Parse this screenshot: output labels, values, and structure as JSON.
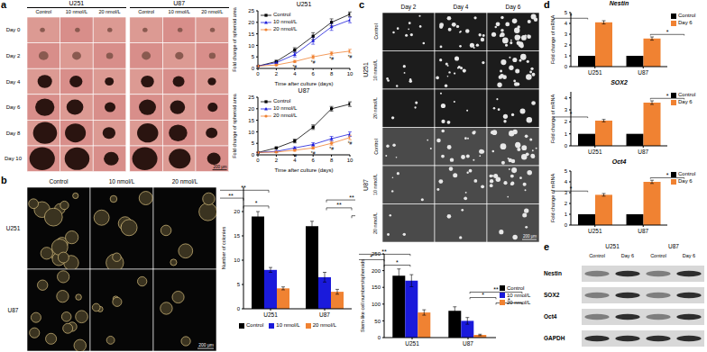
{
  "panels": {
    "a": {
      "label": "a",
      "cell_lines": [
        "U251",
        "U87"
      ],
      "conditions": [
        "Control",
        "10 nmol/L",
        "20 nmol/L"
      ],
      "days": [
        "Day 0",
        "Day 2",
        "Day 4",
        "Day 6",
        "Day 8",
        "Day 10"
      ],
      "scale_bar": "200 μm"
    },
    "b": {
      "label": "b",
      "conditions": [
        "Control",
        "10 nmol/L",
        "20 nmol/L"
      ],
      "cell_lines": [
        "U251",
        "U87"
      ],
      "scale_bar": "200 μm"
    },
    "c": {
      "label": "c",
      "days": [
        "Day 2",
        "Day 4",
        "Day 6"
      ],
      "cell_lines": [
        "U251",
        "U87"
      ],
      "conditions": [
        "Control",
        "10 nmol/L",
        "20 nmol/L"
      ],
      "scale_bar": "200 μm"
    },
    "d": {
      "label": "d"
    },
    "e": {
      "label": "e",
      "cell_lines": [
        "U251",
        "U87"
      ],
      "conditions": [
        "Control",
        "Day 6"
      ],
      "proteins": [
        "Nestin",
        "SOX2",
        "Oct4",
        "GAPDH"
      ]
    }
  },
  "chart_data": [
    {
      "type": "line",
      "title": "U251",
      "x_label": "Time after culture (days)",
      "y_label": "Fold change of spheroid area",
      "x": [
        0,
        2,
        4,
        6,
        8,
        10
      ],
      "xlim": [
        0,
        10
      ],
      "xticks": [
        0,
        2,
        4,
        6,
        8,
        10
      ],
      "ylim": [
        0,
        25
      ],
      "yticks": [
        0,
        5,
        10,
        15,
        20,
        25
      ],
      "legend": "top-left",
      "series": [
        {
          "name": "Control",
          "color": "#000000",
          "marker": "square",
          "values": [
            1,
            3,
            8,
            14,
            20,
            23.5
          ],
          "errors": [
            0.1,
            0.5,
            1,
            1.5,
            1.5,
            1
          ]
        },
        {
          "name": "10 nmol/L",
          "color": "#1a1adb",
          "marker": "triangle",
          "values": [
            1,
            2.5,
            6,
            12,
            18,
            21
          ],
          "errors": [
            0.1,
            0.4,
            1,
            1.5,
            1.5,
            1.2
          ]
        },
        {
          "name": "20 nmol/L",
          "color": "#f08232",
          "marker": "circle",
          "values": [
            1,
            1.5,
            3,
            5,
            6.5,
            7.5
          ],
          "errors": [
            0.1,
            0.3,
            0.5,
            0.8,
            0.8,
            0.8
          ]
        }
      ],
      "annotations": [
        {
          "series": "20 nmol/L",
          "x": 4,
          "label": "*#"
        },
        {
          "series": "20 nmol/L",
          "x": 6,
          "label": "*#"
        },
        {
          "series": "20 nmol/L",
          "x": 8,
          "label": "*#"
        },
        {
          "series": "20 nmol/L",
          "x": 10,
          "label": "*#"
        }
      ]
    },
    {
      "type": "line",
      "title": "U87",
      "x_label": "Time after culture (days)",
      "y_label": "Fold change of spheroid area",
      "x": [
        0,
        2,
        4,
        6,
        8,
        10
      ],
      "xlim": [
        0,
        10
      ],
      "xticks": [
        0,
        2,
        4,
        6,
        8,
        10
      ],
      "ylim": [
        0,
        25
      ],
      "yticks": [
        0,
        5,
        10,
        15,
        20,
        25
      ],
      "legend": "top-left",
      "series": [
        {
          "name": "Control",
          "color": "#000000",
          "marker": "square",
          "values": [
            1,
            3,
            6,
            12,
            20,
            22
          ],
          "errors": [
            0.1,
            0.4,
            0.8,
            1,
            1,
            1
          ]
        },
        {
          "name": "10 nmol/L",
          "color": "#1a1adb",
          "marker": "triangle",
          "values": [
            1,
            1.5,
            3,
            4.5,
            7,
            9
          ],
          "errors": [
            0.1,
            0.3,
            0.5,
            0.8,
            1,
            1
          ]
        },
        {
          "name": "20 nmol/L",
          "color": "#f08232",
          "marker": "circle",
          "values": [
            1,
            1.2,
            2,
            3,
            5,
            7.5
          ],
          "errors": [
            0.1,
            0.2,
            0.4,
            0.5,
            0.8,
            1
          ]
        }
      ],
      "annotations": [
        {
          "series": "20 nmol/L",
          "x": 4,
          "label": "*#"
        },
        {
          "series": "20 nmol/L",
          "x": 6,
          "label": "*#"
        },
        {
          "series": "20 nmol/L",
          "x": 8,
          "label": "*#"
        },
        {
          "series": "20 nmol/L",
          "x": 10,
          "label": "*#"
        }
      ]
    },
    {
      "type": "bar",
      "y_label": "Number of colonies",
      "categories": [
        "U251",
        "U87"
      ],
      "ylim": [
        0,
        25
      ],
      "yticks": [
        0,
        5,
        10,
        15,
        20
      ],
      "legend": "bottom",
      "series": [
        {
          "name": "Control",
          "color": "#000000",
          "values": [
            19,
            17
          ],
          "errors": [
            1,
            1
          ]
        },
        {
          "name": "10 nmol/L",
          "color": "#1a1adb",
          "values": [
            8,
            6.5
          ],
          "errors": [
            0.5,
            1
          ]
        },
        {
          "name": "20 nmol/L",
          "color": "#f08232",
          "values": [
            4.2,
            3.5
          ],
          "errors": [
            0.3,
            0.5
          ]
        }
      ],
      "significance": [
        {
          "category": "U251",
          "from": "10 nmol/L",
          "to": "20 nmol/L",
          "label": "*"
        },
        {
          "category": "U251",
          "from": "Control",
          "to": "10 nmol/L",
          "label": "**"
        },
        {
          "category": "U251",
          "from": "Control",
          "to": "20 nmol/L",
          "label": "**"
        },
        {
          "category": "U87",
          "from": "10 nmol/L",
          "to": "20 nmol/L",
          "label": "*"
        },
        {
          "category": "U87",
          "from": "Control",
          "to": "10 nmol/L",
          "label": "**"
        },
        {
          "category": "U87",
          "from": "Control",
          "to": "20 nmol/L",
          "label": "**"
        }
      ]
    },
    {
      "type": "bar",
      "y_label": "Stem-like cell numbers/spheroids",
      "categories": [
        "U251",
        "U87"
      ],
      "ylim": [
        0,
        250
      ],
      "yticks": [
        0,
        50,
        100,
        150,
        200,
        250
      ],
      "legend": "right",
      "series": [
        {
          "name": "Control",
          "color": "#000000",
          "values": [
            185,
            80
          ],
          "errors": [
            20,
            12
          ]
        },
        {
          "name": "10 nmol/L",
          "color": "#1a1adb",
          "values": [
            170,
            50
          ],
          "errors": [
            18,
            10
          ]
        },
        {
          "name": "20 nmol/L",
          "color": "#f08232",
          "values": [
            75,
            8
          ],
          "errors": [
            8,
            2
          ]
        }
      ],
      "significance": [
        {
          "category": "U251",
          "from": "10 nmol/L",
          "to": "20 nmol/L",
          "label": "*"
        },
        {
          "category": "U251",
          "from": "Control",
          "to": "10 nmol/L",
          "label": "*"
        },
        {
          "category": "U251",
          "from": "Control",
          "to": "20 nmol/L",
          "label": "**"
        },
        {
          "category": "U87",
          "from": "10 nmol/L",
          "to": "20 nmol/L",
          "label": "*"
        },
        {
          "category": "U87",
          "from": "Control",
          "to": "10 nmol/L",
          "label": "*"
        },
        {
          "category": "U87",
          "from": "Control",
          "to": "20 nmol/L",
          "label": "**"
        }
      ]
    },
    {
      "type": "bar",
      "title": "Nestin",
      "y_label": "Fold change of mRNA",
      "categories": [
        "U251",
        "U87"
      ],
      "ylim": [
        0,
        5
      ],
      "yticks": [
        0,
        1,
        2,
        3,
        4,
        5
      ],
      "legend": "top-right",
      "series": [
        {
          "name": "Control",
          "color": "#000000",
          "values": [
            1,
            1
          ],
          "errors": [
            0,
            0
          ]
        },
        {
          "name": "Day 6",
          "color": "#f08232",
          "values": [
            4.1,
            2.6
          ],
          "errors": [
            0.15,
            0.15
          ]
        }
      ],
      "significance": [
        {
          "category": "U251",
          "from": "Control",
          "to": "Day 6",
          "label": "*"
        },
        {
          "category": "U87",
          "from": "Control",
          "to": "Day 6",
          "label": "*"
        }
      ]
    },
    {
      "type": "bar",
      "title": "SOX2",
      "y_label": "Fold change of mRNA",
      "categories": [
        "U251",
        "U87"
      ],
      "ylim": [
        0,
        4.5
      ],
      "yticks": [
        0,
        1,
        2,
        3,
        4
      ],
      "legend": "top-right",
      "series": [
        {
          "name": "Control",
          "color": "#000000",
          "values": [
            1,
            1
          ],
          "errors": [
            0,
            0
          ]
        },
        {
          "name": "Day 6",
          "color": "#f08232",
          "values": [
            2.1,
            3.6
          ],
          "errors": [
            0.1,
            0.15
          ]
        }
      ],
      "significance": [
        {
          "category": "U251",
          "from": "Control",
          "to": "Day 6",
          "label": "*"
        },
        {
          "category": "U87",
          "from": "Control",
          "to": "Day 6",
          "label": "*"
        }
      ]
    },
    {
      "type": "bar",
      "title": "Oct4",
      "y_label": "Fold change of mRNA",
      "categories": [
        "U251",
        "U87"
      ],
      "ylim": [
        0,
        5
      ],
      "yticks": [
        0,
        1,
        2,
        3,
        4,
        5
      ],
      "legend": "top-right",
      "series": [
        {
          "name": "Control",
          "color": "#000000",
          "values": [
            1,
            1
          ],
          "errors": [
            0,
            0
          ]
        },
        {
          "name": "Day 6",
          "color": "#f08232",
          "values": [
            2.8,
            4.0
          ],
          "errors": [
            0.12,
            0.15
          ]
        }
      ],
      "significance": [
        {
          "category": "U251",
          "from": "Control",
          "to": "Day 6",
          "label": "*"
        },
        {
          "category": "U87",
          "from": "Control",
          "to": "Day 6",
          "label": "*"
        }
      ]
    }
  ]
}
